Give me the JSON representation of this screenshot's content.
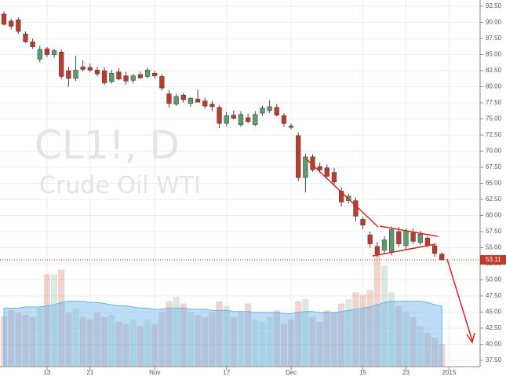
{
  "chart_data": {
    "type": "candlestick",
    "watermark_symbol": "CL1!, D",
    "watermark_name": "Crude Oil WTI",
    "open": [
      91.3,
      90.2,
      90.4,
      88.2,
      87.0,
      84.3,
      85.9,
      85.0,
      85.4,
      82.5,
      81.3,
      83.1,
      83.0,
      82.6,
      82.5,
      80.8,
      82.3,
      81.7,
      81.0,
      81.9,
      81.6,
      82.1,
      81.6,
      78.9,
      77.3,
      78.7,
      77.4,
      78.1,
      77.8,
      77.3,
      76.8,
      74.3,
      75.6,
      74.1,
      75.2,
      74.1,
      75.9,
      76.3,
      76.8,
      75.5,
      73.9,
      72.4,
      65.9,
      69.1,
      67.6,
      67.4,
      66.7,
      63.8,
      62.3,
      62.3,
      59.4,
      57.0,
      55.2,
      54.6,
      54.4,
      57.5,
      55.3,
      57.3,
      55.8,
      56.5,
      55.3,
      54.0
    ],
    "high": [
      91.7,
      90.6,
      90.8,
      88.6,
      87.5,
      86.4,
      86.2,
      85.9,
      85.8,
      83.1,
      84.8,
      84.1,
      83.6,
      83.1,
      83.0,
      82.6,
      82.9,
      82.3,
      82.0,
      82.4,
      83.0,
      82.5,
      81.9,
      79.5,
      78.9,
      79.0,
      78.4,
      79.6,
      78.3,
      77.8,
      77.1,
      76.1,
      76.3,
      76.2,
      75.8,
      76.2,
      77.1,
      77.9,
      77.3,
      75.9,
      74.3,
      72.9,
      69.6,
      69.5,
      68.2,
      67.9,
      67.4,
      64.4,
      63.4,
      62.8,
      59.8,
      57.5,
      55.9,
      56.8,
      58.3,
      58.2,
      58.0,
      58.0,
      57.6,
      56.8,
      55.7,
      54.3
    ],
    "low": [
      89.5,
      88.9,
      88.2,
      86.8,
      85.9,
      83.8,
      84.6,
      84.5,
      81.2,
      80.0,
      80.9,
      82.4,
      82.3,
      81.6,
      80.3,
      80.5,
      81.0,
      80.3,
      80.5,
      81.2,
      81.3,
      81.3,
      79.4,
      76.8,
      77.0,
      77.5,
      76.9,
      77.6,
      76.6,
      76.2,
      73.6,
      73.8,
      74.9,
      73.8,
      74.3,
      73.9,
      75.5,
      75.9,
      75.4,
      73.8,
      73.4,
      65.4,
      63.6,
      66.8,
      66.9,
      65.9,
      64.8,
      61.4,
      61.9,
      59.1,
      57.9,
      55.0,
      53.6,
      54.0,
      53.8,
      55.1,
      54.8,
      55.6,
      55.4,
      55.1,
      53.6,
      53.0
    ],
    "close": [
      89.7,
      89.4,
      88.6,
      87.0,
      86.2,
      85.8,
      85.0,
      85.6,
      81.6,
      81.3,
      82.6,
      82.7,
      82.6,
      82.0,
      80.6,
      82.1,
      81.2,
      80.9,
      81.7,
      81.4,
      82.6,
      81.7,
      79.8,
      77.4,
      78.5,
      78.0,
      78.2,
      77.6,
      77.0,
      76.9,
      74.3,
      75.5,
      75.1,
      75.7,
      74.6,
      75.7,
      76.7,
      76.9,
      75.6,
      74.3,
      73.7,
      65.9,
      69.1,
      67.1,
      67.1,
      66.1,
      65.2,
      62.1,
      63.0,
      59.9,
      58.5,
      55.6,
      54.0,
      56.2,
      57.8,
      55.6,
      57.6,
      56.0,
      57.1,
      55.3,
      54.1,
      53.11
    ],
    "volume": [
      45,
      50,
      48,
      46,
      44,
      52,
      82,
      82,
      86,
      48,
      52,
      44,
      42,
      48,
      44,
      46,
      40,
      38,
      42,
      36,
      42,
      38,
      48,
      58,
      62,
      56,
      48,
      46,
      44,
      48,
      58,
      54,
      44,
      48,
      56,
      42,
      40,
      44,
      50,
      38,
      42,
      58,
      60,
      44,
      40,
      50,
      48,
      56,
      60,
      66,
      64,
      68,
      100,
      90,
      66,
      54,
      48,
      44,
      36,
      30,
      26,
      20
    ],
    "volume_ma": [
      52,
      52,
      52,
      53,
      53,
      53,
      54,
      55,
      57,
      58,
      58,
      58,
      57,
      57,
      56,
      55,
      54,
      54,
      53,
      52,
      52,
      51,
      51,
      52,
      52,
      52,
      51,
      51,
      51,
      50,
      50,
      50,
      49,
      49,
      49,
      48,
      48,
      48,
      48,
      47,
      47,
      48,
      49,
      49,
      48,
      48,
      48,
      49,
      50,
      51,
      52,
      53,
      55,
      57,
      58,
      58,
      58,
      58,
      58,
      57,
      55,
      54
    ],
    "volume_lim": [
      0,
      92
    ],
    "up_color": "#5a9e6d",
    "down_color": "#c0392b",
    "volume_ma_color": "#6ab3e8",
    "last_price": 53.11,
    "xlim": [
      -0.55,
      66.33
    ],
    "xticks": [
      {
        "value": 6,
        "label": "13"
      },
      {
        "value": 12,
        "label": "21"
      },
      {
        "value": 21,
        "label": "Nov"
      },
      {
        "value": 31,
        "label": "17"
      },
      {
        "value": 40,
        "label": "Dec"
      },
      {
        "value": 50,
        "label": "15"
      },
      {
        "value": 56,
        "label": "23"
      },
      {
        "value": 62,
        "label": "2015"
      }
    ],
    "ylim": [
      36.52,
      93.48
    ],
    "yticks": [
      {
        "value": 37.5,
        "label": "37.50"
      },
      {
        "value": 40,
        "label": "40.00"
      },
      {
        "value": 42.5,
        "label": "42.50"
      },
      {
        "value": 45,
        "label": "45.00"
      },
      {
        "value": 47.5,
        "label": "47.50"
      },
      {
        "value": 50,
        "label": "50.00"
      },
      {
        "value": 52.5,
        "label": "52.50"
      },
      {
        "value": 55,
        "label": "55.00"
      },
      {
        "value": 57.5,
        "label": "57.50"
      },
      {
        "value": 60,
        "label": "60.00"
      },
      {
        "value": 62.5,
        "label": "62.50"
      },
      {
        "value": 65,
        "label": "65.00"
      },
      {
        "value": 67.5,
        "label": "67.50"
      },
      {
        "value": 70,
        "label": "70.00"
      },
      {
        "value": 72.5,
        "label": "72.50"
      },
      {
        "value": 75,
        "label": "75.00"
      },
      {
        "value": 77.5,
        "label": "77.50"
      },
      {
        "value": 80,
        "label": "80.00"
      },
      {
        "value": 82.5,
        "label": "82.50"
      },
      {
        "value": 85,
        "label": "85.00"
      },
      {
        "value": 87.5,
        "label": "87.50"
      },
      {
        "value": 90,
        "label": "90.00"
      },
      {
        "value": 92.5,
        "label": "92.50"
      }
    ],
    "grid": true
  }
}
